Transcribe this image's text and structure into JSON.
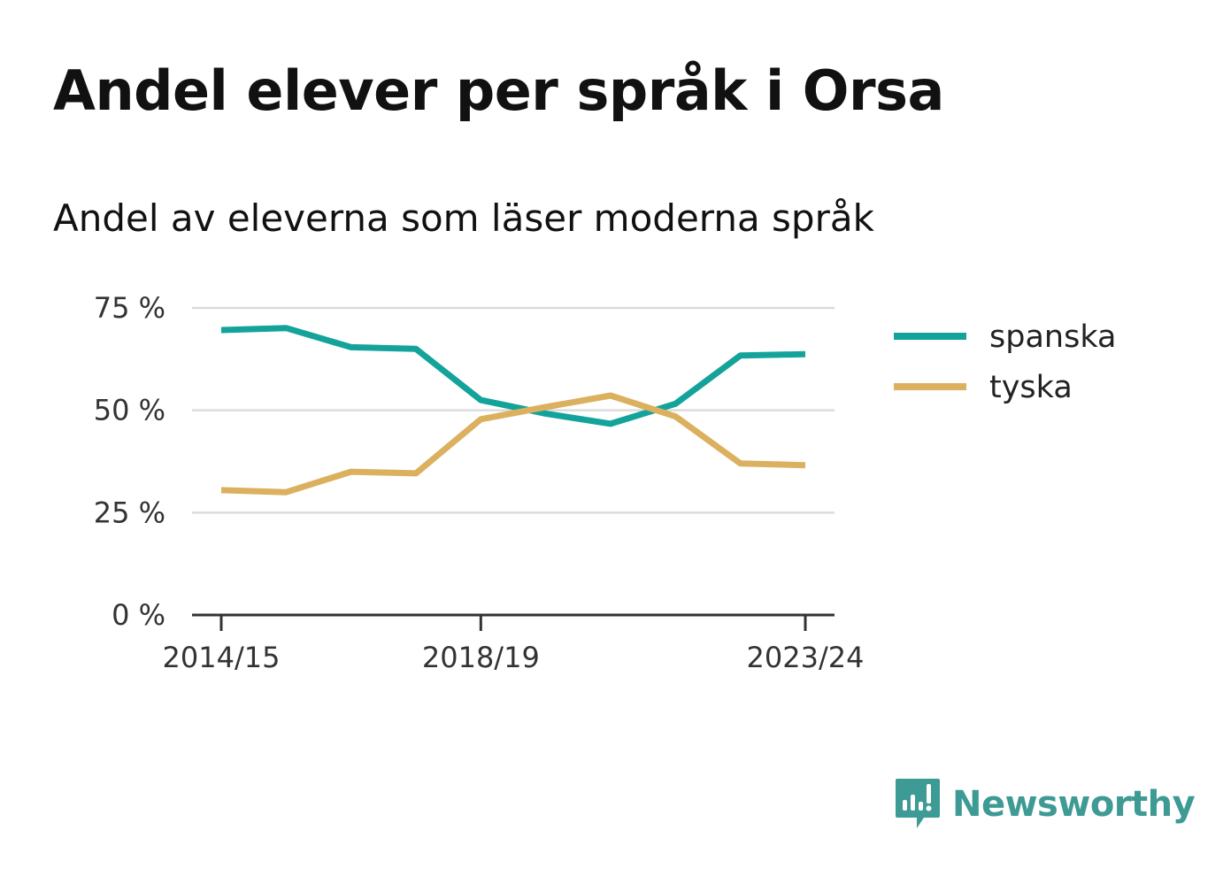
{
  "title": "Andel elever per språk i Orsa",
  "subtitle": "Andel av eleverna som läser moderna språk",
  "brand": {
    "name": "Newsworthy",
    "color": "#3d9a94",
    "icon": "newsworthy-logo-icon"
  },
  "chart_data": {
    "type": "line",
    "x": [
      "2014/15",
      "2015/16",
      "2016/17",
      "2017/18",
      "2018/19",
      "2019/20",
      "2020/21",
      "2021/22",
      "2022/23",
      "2023/24"
    ],
    "x_tick_labels": [
      "2014/15",
      "2018/19",
      "2023/24"
    ],
    "y_tick_labels": [
      "0 %",
      "25 %",
      "50 %",
      "75 %"
    ],
    "y_ticks": [
      0,
      25,
      50,
      75
    ],
    "ylim": [
      0,
      75
    ],
    "grid": true,
    "legend_position": "right",
    "series": [
      {
        "name": "spanska",
        "color": "#13a39a",
        "values": [
          69.6,
          70.1,
          65.4,
          65.0,
          52.5,
          49.2,
          46.7,
          51.6,
          63.4,
          63.7
        ]
      },
      {
        "name": "tyska",
        "color": "#dbb05e",
        "values": [
          30.5,
          30.0,
          35.0,
          34.6,
          47.8,
          50.8,
          53.6,
          48.5,
          37.0,
          36.6
        ]
      }
    ]
  }
}
